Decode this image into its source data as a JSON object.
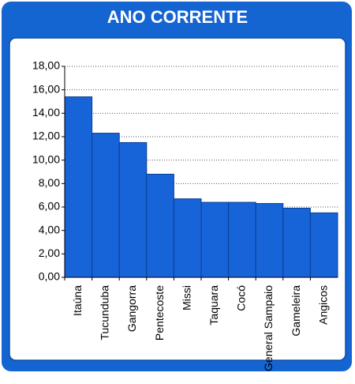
{
  "chart_data": {
    "type": "bar",
    "title": "ANO CORRENTE",
    "categories": [
      "Itaúna",
      "Tucunduba",
      "Gangorra",
      "Pentecoste",
      "Missi",
      "Taquara",
      "Cocó",
      "General Sampaio",
      "Gameleira",
      "Angicos"
    ],
    "values": [
      15.4,
      12.3,
      11.5,
      8.8,
      6.7,
      6.4,
      6.4,
      6.3,
      5.9,
      5.5
    ],
    "color": "#1763d8",
    "ylim": [
      0,
      18
    ],
    "yticks": [
      {
        "value": 0,
        "label": "0,00"
      },
      {
        "value": 2,
        "label": "2,00"
      },
      {
        "value": 4,
        "label": "4,00"
      },
      {
        "value": 6,
        "label": "6,00"
      },
      {
        "value": 8,
        "label": "8,00"
      },
      {
        "value": 10,
        "label": "10,00"
      },
      {
        "value": 12,
        "label": "12,00"
      },
      {
        "value": 14,
        "label": "14,00"
      },
      {
        "value": 16,
        "label": "16,00"
      },
      {
        "value": 18,
        "label": "18,00"
      }
    ],
    "grid": true
  }
}
